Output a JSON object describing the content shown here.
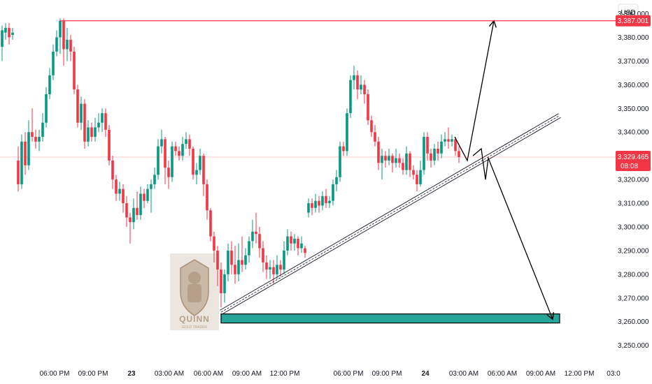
{
  "currency_label": "USD",
  "chart_data": {
    "type": "candlestick",
    "y_axis": {
      "ylim": [
        3244,
        3394
      ],
      "ticks": [
        3390,
        3380,
        3370,
        3360,
        3350,
        3340,
        3320,
        3310,
        3300,
        3290,
        3280,
        3270,
        3260,
        3250
      ],
      "tick_labels": [
        "3,390.000",
        "3,380.000",
        "3,370.000",
        "3,360.000",
        "3,350.000",
        "3,340.000",
        "3,320.000",
        "3,310.000",
        "3,300.000",
        "3,290.000",
        "3,280.000",
        "3,270.000",
        "3,260.000",
        "3,250.000"
      ]
    },
    "x_axis": {
      "xlim": [
        0,
        880
      ],
      "tick_labels": [
        {
          "x": 78,
          "label": "06:00 PM",
          "bold": false
        },
        {
          "x": 133,
          "label": "09:00 PM",
          "bold": false
        },
        {
          "x": 188,
          "label": "23",
          "bold": true
        },
        {
          "x": 242,
          "label": "03:00 AM",
          "bold": false
        },
        {
          "x": 298,
          "label": "06:00 AM",
          "bold": false
        },
        {
          "x": 353,
          "label": "09:00 AM",
          "bold": false
        },
        {
          "x": 407,
          "label": "12:00 PM",
          "bold": false
        },
        {
          "x": 498,
          "label": "06:00 PM",
          "bold": false
        },
        {
          "x": 553,
          "label": "09:00 PM",
          "bold": false
        },
        {
          "x": 608,
          "label": "24",
          "bold": true
        },
        {
          "x": 663,
          "label": "03:00 AM",
          "bold": false
        },
        {
          "x": 718,
          "label": "06:00 AM",
          "bold": false
        },
        {
          "x": 773,
          "label": "09:00 AM",
          "bold": false
        },
        {
          "x": 828,
          "label": "12:00 PM",
          "bold": false
        },
        {
          "x": 877,
          "label": "03:0",
          "bold": false
        }
      ]
    },
    "resistance_level": {
      "value": 3387.001,
      "label": "3,387.001",
      "color": "#f23645"
    },
    "current_price": {
      "value": 3329.465,
      "label": "3,329.465",
      "countdown": "08:08",
      "color": "#f23645"
    },
    "support_zone": {
      "x_start": 316,
      "x_end": 800,
      "y_top": 3261.5,
      "y_bottom": 3260.0,
      "color": "#26a69a"
    },
    "trendline": {
      "from": [
        316,
        3264
      ],
      "to": [
        800,
        3347
      ]
    },
    "projections": [
      {
        "name": "bullish",
        "points": [
          [
            650,
            3338
          ],
          [
            668,
            3328
          ],
          [
            706,
            3387
          ]
        ]
      },
      {
        "name": "bearish",
        "points": [
          [
            676,
            3330
          ],
          [
            688,
            3333
          ],
          [
            694,
            3320
          ],
          [
            698,
            3329
          ],
          [
            790,
            3261
          ]
        ]
      }
    ],
    "up_color": "#089981",
    "down_color": "#f23645",
    "candles": [
      [
        3,
        3376,
        3383,
        3385,
        3370
      ],
      [
        8,
        3382,
        3384,
        3386,
        3379
      ],
      [
        13,
        3384,
        3380,
        3386,
        3377
      ],
      [
        18,
        3381,
        3382,
        3384,
        3379
      ],
      [
        26,
        3328,
        3318,
        3334,
        3315
      ],
      [
        31,
        3318,
        3336,
        3339,
        3316
      ],
      [
        36,
        3336,
        3326,
        3340,
        3322
      ],
      [
        41,
        3326,
        3340,
        3345,
        3324
      ],
      [
        46,
        3340,
        3338,
        3350,
        3336
      ],
      [
        51,
        3338,
        3336,
        3341,
        3333
      ],
      [
        56,
        3336,
        3338,
        3341,
        3332
      ],
      [
        61,
        3338,
        3344,
        3348,
        3336
      ],
      [
        66,
        3344,
        3356,
        3359,
        3342
      ],
      [
        71,
        3356,
        3364,
        3367,
        3354
      ],
      [
        76,
        3364,
        3374,
        3377,
        3362
      ],
      [
        81,
        3374,
        3380,
        3383,
        3372
      ],
      [
        86,
        3380,
        3387,
        3388,
        3373
      ],
      [
        91,
        3387,
        3375,
        3388,
        3368
      ],
      [
        96,
        3375,
        3379,
        3384,
        3370
      ],
      [
        101,
        3379,
        3374,
        3381,
        3370
      ],
      [
        106,
        3374,
        3358,
        3376,
        3356
      ],
      [
        111,
        3358,
        3344,
        3360,
        3342
      ],
      [
        116,
        3344,
        3352,
        3355,
        3341
      ],
      [
        121,
        3352,
        3336,
        3354,
        3333
      ],
      [
        126,
        3336,
        3342,
        3345,
        3334
      ],
      [
        131,
        3342,
        3338,
        3344,
        3336
      ],
      [
        136,
        3338,
        3342,
        3346,
        3336
      ],
      [
        141,
        3342,
        3344,
        3348,
        3340
      ],
      [
        146,
        3344,
        3348,
        3350,
        3340
      ],
      [
        151,
        3348,
        3341,
        3350,
        3338
      ],
      [
        156,
        3341,
        3328,
        3343,
        3326
      ],
      [
        161,
        3328,
        3320,
        3330,
        3316
      ],
      [
        166,
        3320,
        3314,
        3322,
        3311
      ],
      [
        171,
        3314,
        3316,
        3319,
        3311
      ],
      [
        176,
        3316,
        3310,
        3318,
        3306
      ],
      [
        181,
        3310,
        3304,
        3313,
        3300
      ],
      [
        186,
        3304,
        3302,
        3306,
        3293
      ],
      [
        191,
        3302,
        3308,
        3312,
        3299
      ],
      [
        196,
        3308,
        3305,
        3315,
        3303
      ],
      [
        201,
        3305,
        3314,
        3317,
        3303
      ],
      [
        206,
        3314,
        3311,
        3316,
        3308
      ],
      [
        211,
        3311,
        3316,
        3318,
        3310
      ],
      [
        216,
        3316,
        3318,
        3320,
        3306
      ],
      [
        221,
        3318,
        3322,
        3325,
        3316
      ],
      [
        226,
        3322,
        3334,
        3337,
        3320
      ],
      [
        231,
        3334,
        3337,
        3341,
        3331
      ],
      [
        236,
        3337,
        3325,
        3338,
        3318
      ],
      [
        241,
        3325,
        3321,
        3328,
        3316
      ],
      [
        246,
        3321,
        3334,
        3336,
        3319
      ],
      [
        251,
        3334,
        3332,
        3336,
        3330
      ],
      [
        256,
        3332,
        3330,
        3334,
        3328
      ],
      [
        261,
        3330,
        3335,
        3338,
        3328
      ],
      [
        266,
        3335,
        3337,
        3340,
        3333
      ],
      [
        271,
        3337,
        3333,
        3339,
        3330
      ],
      [
        276,
        3333,
        3322,
        3334,
        3320
      ],
      [
        281,
        3322,
        3324,
        3327,
        3318
      ],
      [
        286,
        3324,
        3330,
        3333,
        3322
      ],
      [
        291,
        3330,
        3318,
        3331,
        3313
      ],
      [
        296,
        3318,
        3307,
        3320,
        3303
      ],
      [
        301,
        3307,
        3296,
        3308,
        3294
      ],
      [
        306,
        3296,
        3290,
        3298,
        3285
      ],
      [
        311,
        3290,
        3282,
        3292,
        3275
      ],
      [
        316,
        3282,
        3272,
        3285,
        3266
      ],
      [
        321,
        3272,
        3280,
        3282,
        3268
      ],
      [
        326,
        3280,
        3290,
        3293,
        3277
      ],
      [
        331,
        3290,
        3284,
        3294,
        3280
      ],
      [
        336,
        3284,
        3280,
        3292,
        3276
      ],
      [
        341,
        3280,
        3286,
        3293,
        3277
      ],
      [
        346,
        3286,
        3284,
        3296,
        3281
      ],
      [
        351,
        3284,
        3288,
        3291,
        3282
      ],
      [
        356,
        3288,
        3294,
        3296,
        3285
      ],
      [
        361,
        3294,
        3298,
        3303,
        3291
      ],
      [
        366,
        3298,
        3297,
        3306,
        3293
      ],
      [
        371,
        3297,
        3291,
        3300,
        3287
      ],
      [
        376,
        3291,
        3285,
        3294,
        3281
      ],
      [
        381,
        3285,
        3282,
        3288,
        3278
      ],
      [
        386,
        3282,
        3283,
        3286,
        3278
      ],
      [
        391,
        3283,
        3280,
        3286,
        3276
      ],
      [
        396,
        3280,
        3284,
        3288,
        3278
      ],
      [
        401,
        3284,
        3282,
        3286,
        3279
      ],
      [
        406,
        3282,
        3290,
        3294,
        3280
      ],
      [
        411,
        3290,
        3296,
        3299,
        3288
      ],
      [
        416,
        3296,
        3293,
        3298,
        3290
      ],
      [
        421,
        3293,
        3295,
        3297,
        3290
      ],
      [
        426,
        3295,
        3291,
        3296,
        3288
      ],
      [
        431,
        3291,
        3293,
        3296,
        3289
      ],
      [
        436,
        3291,
        3289,
        3292,
        3287
      ],
      [
        441,
        3306,
        3310,
        3312,
        3304
      ],
      [
        446,
        3310,
        3308,
        3312,
        3305
      ],
      [
        451,
        3308,
        3311,
        3314,
        3306
      ],
      [
        456,
        3311,
        3309,
        3313,
        3306
      ],
      [
        461,
        3309,
        3313,
        3315,
        3307
      ],
      [
        466,
        3313,
        3310,
        3316,
        3308
      ],
      [
        471,
        3310,
        3311,
        3313,
        3308
      ],
      [
        476,
        3311,
        3318,
        3320,
        3309
      ],
      [
        481,
        3318,
        3321,
        3324,
        3315
      ],
      [
        486,
        3321,
        3334,
        3336,
        3319
      ],
      [
        491,
        3334,
        3332,
        3336,
        3330
      ],
      [
        496,
        3332,
        3348,
        3350,
        3330
      ],
      [
        501,
        3348,
        3362,
        3364,
        3346
      ],
      [
        506,
        3362,
        3364,
        3368,
        3358
      ],
      [
        511,
        3364,
        3358,
        3366,
        3354
      ],
      [
        516,
        3358,
        3360,
        3364,
        3356
      ],
      [
        521,
        3360,
        3356,
        3362,
        3352
      ],
      [
        526,
        3356,
        3345,
        3358,
        3343
      ],
      [
        531,
        3345,
        3340,
        3347,
        3338
      ],
      [
        536,
        3340,
        3336,
        3343,
        3334
      ],
      [
        541,
        3336,
        3327,
        3338,
        3324
      ],
      [
        546,
        3327,
        3330,
        3333,
        3320
      ],
      [
        551,
        3330,
        3328,
        3332,
        3325
      ],
      [
        556,
        3328,
        3330,
        3333,
        3326
      ],
      [
        561,
        3330,
        3327,
        3331,
        3323
      ],
      [
        566,
        3327,
        3329,
        3333,
        3325
      ],
      [
        571,
        3329,
        3327,
        3331,
        3325
      ],
      [
        576,
        3327,
        3324,
        3329,
        3322
      ],
      [
        581,
        3324,
        3331,
        3334,
        3322
      ],
      [
        586,
        3331,
        3324,
        3332,
        3321
      ],
      [
        591,
        3324,
        3322,
        3326,
        3320
      ],
      [
        596,
        3322,
        3318,
        3324,
        3315
      ],
      [
        601,
        3318,
        3324,
        3328,
        3317
      ],
      [
        606,
        3324,
        3338,
        3340,
        3322
      ],
      [
        611,
        3338,
        3331,
        3340,
        3328
      ],
      [
        616,
        3331,
        3328,
        3333,
        3325
      ],
      [
        621,
        3328,
        3333,
        3335,
        3326
      ],
      [
        626,
        3333,
        3331,
        3336,
        3328
      ],
      [
        631,
        3331,
        3336,
        3339,
        3329
      ],
      [
        636,
        3336,
        3337,
        3340,
        3334
      ],
      [
        641,
        3337,
        3336,
        3342,
        3333
      ],
      [
        646,
        3336,
        3337,
        3339,
        3334
      ],
      [
        651,
        3337,
        3332,
        3338,
        3330
      ],
      [
        656,
        3332,
        3329.465,
        3334,
        3327
      ]
    ]
  }
}
